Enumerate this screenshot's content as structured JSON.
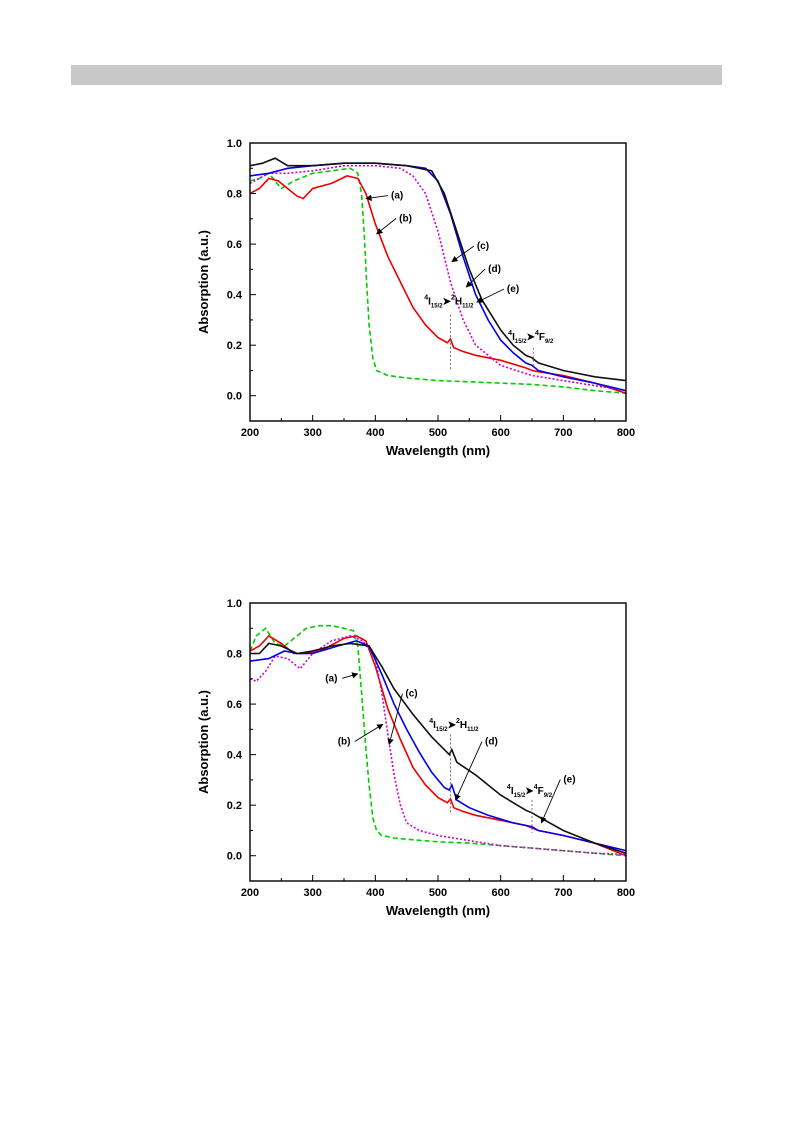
{
  "header_bar": {
    "color": "#c8c8c8"
  },
  "chart_data": [
    {
      "type": "line",
      "xlabel": "Wavelength (nm)",
      "ylabel": "Absorption (a.u.)",
      "xlim": [
        200,
        800
      ],
      "ylim": [
        -0.1,
        1.0
      ],
      "xticks": [
        200,
        300,
        400,
        500,
        600,
        700,
        800
      ],
      "yticks": [
        0.0,
        0.2,
        0.4,
        0.6,
        0.8,
        1.0
      ],
      "series": [
        {
          "name": "(a)",
          "color": "#00cc00",
          "style": "dashed",
          "x": [
            200,
            215,
            230,
            250,
            270,
            300,
            330,
            360,
            372,
            378,
            382,
            386,
            390,
            396,
            402,
            420,
            450,
            500,
            550,
            600,
            650,
            700,
            750,
            800
          ],
          "y": [
            0.85,
            0.86,
            0.88,
            0.82,
            0.85,
            0.88,
            0.89,
            0.9,
            0.88,
            0.8,
            0.65,
            0.45,
            0.28,
            0.15,
            0.1,
            0.08,
            0.07,
            0.06,
            0.055,
            0.05,
            0.045,
            0.035,
            0.02,
            0.01
          ]
        },
        {
          "name": "(b)",
          "color": "#ee0000",
          "style": "solid",
          "x": [
            200,
            215,
            230,
            245,
            260,
            275,
            285,
            300,
            330,
            355,
            372,
            385,
            400,
            420,
            440,
            460,
            480,
            500,
            515,
            520,
            525,
            540,
            560,
            600,
            640,
            650,
            660,
            700,
            750,
            800
          ],
          "y": [
            0.8,
            0.82,
            0.86,
            0.85,
            0.82,
            0.79,
            0.78,
            0.82,
            0.84,
            0.87,
            0.86,
            0.8,
            0.68,
            0.55,
            0.45,
            0.35,
            0.28,
            0.23,
            0.21,
            0.225,
            0.19,
            0.175,
            0.16,
            0.14,
            0.11,
            0.1,
            0.095,
            0.08,
            0.05,
            0.01
          ]
        },
        {
          "name": "(c)",
          "color": "#cc00cc",
          "style": "dotted",
          "x": [
            200,
            230,
            260,
            300,
            350,
            400,
            440,
            460,
            480,
            500,
            520,
            540,
            560,
            600,
            650,
            700,
            750,
            800
          ],
          "y": [
            0.84,
            0.88,
            0.88,
            0.89,
            0.91,
            0.91,
            0.9,
            0.87,
            0.8,
            0.65,
            0.45,
            0.3,
            0.2,
            0.12,
            0.08,
            0.06,
            0.04,
            0.02
          ]
        },
        {
          "name": "(d)",
          "color": "#0000ee",
          "style": "solid",
          "x": [
            200,
            230,
            260,
            300,
            350,
            400,
            450,
            480,
            500,
            520,
            540,
            560,
            580,
            600,
            620,
            640,
            650,
            660,
            700,
            750,
            800
          ],
          "y": [
            0.87,
            0.88,
            0.9,
            0.91,
            0.92,
            0.92,
            0.91,
            0.9,
            0.85,
            0.72,
            0.55,
            0.4,
            0.3,
            0.22,
            0.17,
            0.13,
            0.12,
            0.1,
            0.075,
            0.05,
            0.02
          ]
        },
        {
          "name": "(e)",
          "color": "#111111",
          "style": "solid",
          "x": [
            200,
            220,
            240,
            260,
            300,
            350,
            400,
            450,
            490,
            510,
            530,
            550,
            570,
            600,
            620,
            640,
            650,
            660,
            700,
            750,
            800
          ],
          "y": [
            0.91,
            0.92,
            0.94,
            0.91,
            0.91,
            0.92,
            0.92,
            0.91,
            0.89,
            0.8,
            0.65,
            0.5,
            0.38,
            0.26,
            0.2,
            0.16,
            0.15,
            0.13,
            0.1,
            0.075,
            0.06
          ]
        }
      ],
      "annotations": [
        {
          "text": "(a)",
          "x": 385,
          "y": 0.78,
          "tx": 425,
          "ty": 0.78
        },
        {
          "text": "(b)",
          "x": 402,
          "y": 0.64,
          "tx": 438,
          "ty": 0.69
        },
        {
          "text": "(c)",
          "x": 522,
          "y": 0.53,
          "tx": 562,
          "ty": 0.58
        },
        {
          "text": "(d)",
          "x": 545,
          "y": 0.43,
          "tx": 580,
          "ty": 0.49
        },
        {
          "text": "(e)",
          "x": 562,
          "y": 0.37,
          "tx": 610,
          "ty": 0.41
        }
      ],
      "transitions": [
        {
          "from_main": "4",
          "from_sub": "I",
          "from_idx": "15/2",
          "to_main": "2",
          "to_sub": "H",
          "to_idx": "11/2",
          "x": 520,
          "label_x": 478,
          "label_y": 0.36,
          "line_top": 0.32,
          "line_bottom": 0.1
        },
        {
          "from_main": "4",
          "from_sub": "I",
          "from_idx": "15/2",
          "to_main": "4",
          "to_sub": "F",
          "to_idx": "9/2",
          "x": 652,
          "label_x": 612,
          "label_y": 0.22,
          "line_top": 0.19,
          "line_bottom": 0.12
        }
      ]
    },
    {
      "type": "line",
      "xlabel": "Wavelength (nm)",
      "ylabel": "Absorption (a.u.)",
      "xlim": [
        200,
        800
      ],
      "ylim": [
        -0.1,
        1.0
      ],
      "xticks": [
        200,
        300,
        400,
        500,
        600,
        700,
        800
      ],
      "yticks": [
        0.0,
        0.2,
        0.4,
        0.6,
        0.8,
        1.0
      ],
      "series": [
        {
          "name": "(a)",
          "color": "#00cc00",
          "style": "dashed",
          "x": [
            200,
            210,
            225,
            240,
            255,
            270,
            290,
            310,
            330,
            350,
            365,
            372,
            378,
            384,
            390,
            396,
            402,
            410,
            430,
            450,
            500,
            550,
            600,
            650,
            700,
            750,
            800
          ],
          "y": [
            0.81,
            0.87,
            0.9,
            0.84,
            0.83,
            0.86,
            0.9,
            0.91,
            0.91,
            0.9,
            0.89,
            0.83,
            0.65,
            0.45,
            0.28,
            0.15,
            0.1,
            0.08,
            0.07,
            0.065,
            0.055,
            0.05,
            0.04,
            0.03,
            0.02,
            0.01,
            0.0
          ]
        },
        {
          "name": "(b)",
          "color": "#ee0000",
          "style": "solid",
          "x": [
            200,
            215,
            230,
            250,
            270,
            290,
            320,
            350,
            370,
            385,
            400,
            420,
            440,
            460,
            480,
            500,
            515,
            520,
            525,
            540,
            560,
            600,
            640,
            650,
            660,
            700,
            750,
            800
          ],
          "y": [
            0.81,
            0.83,
            0.87,
            0.84,
            0.8,
            0.8,
            0.82,
            0.86,
            0.87,
            0.85,
            0.75,
            0.58,
            0.46,
            0.35,
            0.28,
            0.23,
            0.21,
            0.225,
            0.19,
            0.175,
            0.16,
            0.14,
            0.12,
            0.11,
            0.1,
            0.08,
            0.05,
            0.0
          ]
        },
        {
          "name": "(c)",
          "color": "#cc00cc",
          "style": "dotted",
          "x": [
            200,
            210,
            225,
            240,
            260,
            280,
            300,
            330,
            360,
            380,
            400,
            410,
            420,
            430,
            440,
            450,
            470,
            500,
            550,
            600,
            650,
            700,
            750,
            800
          ],
          "y": [
            0.7,
            0.69,
            0.73,
            0.79,
            0.78,
            0.74,
            0.8,
            0.85,
            0.87,
            0.85,
            0.78,
            0.65,
            0.48,
            0.32,
            0.2,
            0.13,
            0.1,
            0.08,
            0.06,
            0.04,
            0.03,
            0.02,
            0.01,
            0.005
          ]
        },
        {
          "name": "(d)",
          "color": "#0000ee",
          "style": "solid",
          "x": [
            200,
            230,
            255,
            275,
            300,
            340,
            370,
            390,
            410,
            430,
            450,
            470,
            490,
            510,
            518,
            522,
            530,
            550,
            580,
            620,
            650,
            660,
            700,
            750,
            800
          ],
          "y": [
            0.77,
            0.78,
            0.81,
            0.8,
            0.8,
            0.83,
            0.85,
            0.83,
            0.72,
            0.6,
            0.5,
            0.41,
            0.33,
            0.27,
            0.26,
            0.28,
            0.22,
            0.19,
            0.16,
            0.13,
            0.115,
            0.1,
            0.08,
            0.05,
            0.02
          ]
        },
        {
          "name": "(e)",
          "color": "#111111",
          "style": "solid",
          "x": [
            200,
            215,
            230,
            250,
            275,
            300,
            330,
            360,
            390,
            410,
            430,
            460,
            490,
            510,
            518,
            522,
            530,
            560,
            600,
            640,
            650,
            660,
            700,
            750,
            800
          ],
          "y": [
            0.8,
            0.8,
            0.84,
            0.83,
            0.8,
            0.81,
            0.83,
            0.84,
            0.83,
            0.75,
            0.66,
            0.56,
            0.47,
            0.42,
            0.4,
            0.42,
            0.37,
            0.32,
            0.24,
            0.18,
            0.17,
            0.155,
            0.1,
            0.05,
            0.01
          ]
        }
      ],
      "annotations": [
        {
          "text": "(a)",
          "x": 372,
          "y": 0.72,
          "tx": 320,
          "ty": 0.69
        },
        {
          "text": "(b)",
          "x": 412,
          "y": 0.52,
          "tx": 340,
          "ty": 0.44
        },
        {
          "text": "(c)",
          "x": 422,
          "y": 0.44,
          "tx": 448,
          "ty": 0.63
        },
        {
          "text": "(d)",
          "x": 528,
          "y": 0.22,
          "tx": 575,
          "ty": 0.44
        },
        {
          "text": "(e)",
          "x": 665,
          "y": 0.13,
          "tx": 700,
          "ty": 0.29
        }
      ],
      "transitions": [
        {
          "from_main": "4",
          "from_sub": "I",
          "from_idx": "15/2",
          "to_main": "2",
          "to_sub": "H",
          "to_idx": "11/2",
          "x": 520,
          "label_x": 486,
          "label_y": 0.505,
          "line_top": 0.48,
          "line_bottom": 0.17
        },
        {
          "from_main": "4",
          "from_sub": "I",
          "from_idx": "15/2",
          "to_main": "4",
          "to_sub": "F",
          "to_idx": "9/2",
          "x": 650,
          "label_x": 610,
          "label_y": 0.245,
          "line_top": 0.22,
          "line_bottom": 0.09
        }
      ]
    }
  ]
}
